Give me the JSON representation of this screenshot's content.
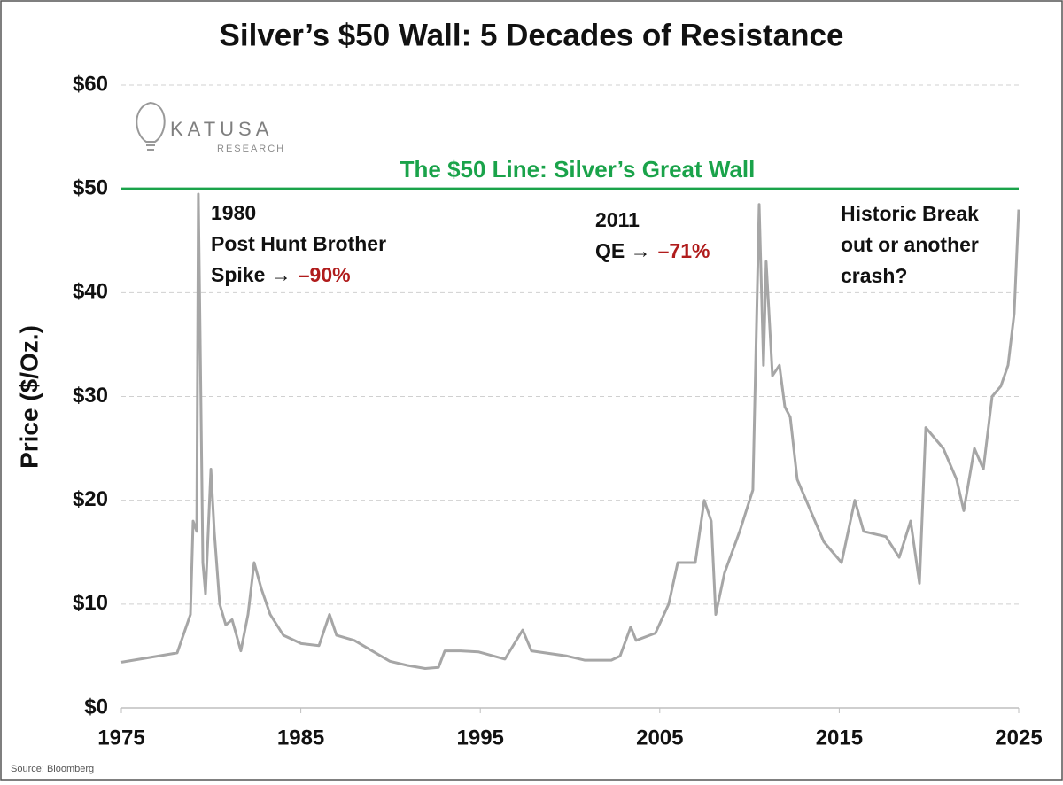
{
  "chart_data": {
    "type": "line",
    "title": "Silver’s $50 Wall: 5 Decades of Resistance",
    "y_label": "Price ($/Oz.)",
    "source": "Source: Bloomberg",
    "logo": {
      "name": "KATUSA",
      "sub": "RESEARCH"
    },
    "xlim": [
      1975,
      2025
    ],
    "xticks": [
      1975,
      1985,
      1995,
      2005,
      2015,
      2025
    ],
    "ylim": [
      0,
      60
    ],
    "yticks": [
      {
        "value": 0,
        "label": "$0"
      },
      {
        "value": 10,
        "label": "$10"
      },
      {
        "value": 20,
        "label": "$20"
      },
      {
        "value": 30,
        "label": "$30"
      },
      {
        "value": 40,
        "label": "$40"
      },
      {
        "value": 50,
        "label": "$50"
      },
      {
        "value": 60,
        "label": "$60"
      }
    ],
    "grid": true,
    "reference_line": {
      "value": 50,
      "label": "The $50 Line: Silver’s Great Wall",
      "color": "#1aa34a"
    },
    "annotations": [
      {
        "lines": [
          "1980",
          "Post Hunt Brother",
          "Spike →"
        ],
        "change": "–90%"
      },
      {
        "lines": [
          "2011",
          "QE →"
        ],
        "change": "–71%"
      },
      {
        "lines": [
          "Historic Break",
          "out or another",
          "crash?"
        ]
      }
    ],
    "series": [
      {
        "name": "Silver",
        "color": "#a6a6a6",
        "x": [
          1975.0,
          1978.11,
          1978.85,
          1979.0,
          1979.2,
          1979.29,
          1979.39,
          1979.54,
          1979.69,
          1979.99,
          1980.18,
          1980.48,
          1980.82,
          1981.17,
          1981.66,
          1982.06,
          1982.4,
          1982.8,
          1983.29,
          1984.03,
          1985.02,
          1986.01,
          1986.6,
          1986.99,
          1987.98,
          1988.97,
          1989.96,
          1990.94,
          1991.93,
          1992.67,
          1993.02,
          1993.9,
          1994.89,
          1996.37,
          1997.36,
          1997.85,
          1999.83,
          2000.81,
          2002.3,
          2002.79,
          2003.38,
          2003.68,
          2004.76,
          2005.5,
          2006.0,
          2006.98,
          2007.48,
          2007.87,
          2008.12,
          2008.61,
          2009.45,
          2010.19,
          2010.54,
          2010.78,
          2010.93,
          2011.28,
          2011.67,
          2011.97,
          2012.27,
          2012.66,
          2013.4,
          2014.14,
          2015.13,
          2015.87,
          2016.36,
          2017.6,
          2018.34,
          2018.98,
          2019.47,
          2019.82,
          2020.31,
          2020.8,
          2021.54,
          2021.94,
          2022.53,
          2023.03,
          2023.52,
          2024.01,
          2024.41,
          2024.75,
          2025.0
        ],
        "values": [
          4.4,
          5.3,
          9,
          18,
          17,
          49.5,
          36,
          14,
          11,
          23,
          17,
          10,
          8,
          8.5,
          5.5,
          9,
          14,
          11.5,
          9,
          7,
          6.2,
          6.0,
          9,
          7,
          6.5,
          5.5,
          4.5,
          4.1,
          3.8,
          3.9,
          5.5,
          5.5,
          5.4,
          4.7,
          7.5,
          5.5,
          5.0,
          4.6,
          4.6,
          5.0,
          7.8,
          6.5,
          7.2,
          10,
          14,
          14,
          20,
          18,
          9,
          13,
          17,
          21,
          48.5,
          33,
          43,
          32,
          33,
          29,
          28,
          22,
          19,
          16,
          14,
          20,
          17,
          16.5,
          14.5,
          18,
          12,
          27,
          26,
          25,
          22,
          19,
          25,
          23,
          30,
          31,
          33,
          38,
          48
        ]
      }
    ]
  }
}
